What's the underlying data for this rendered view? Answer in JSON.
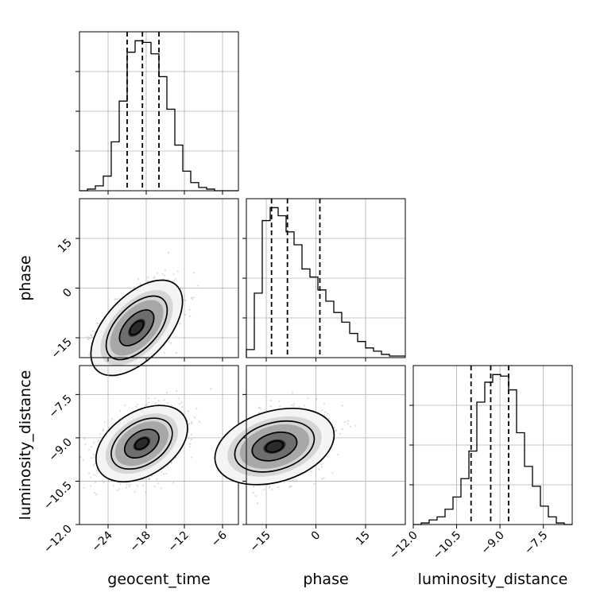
{
  "chart_data": {
    "type": "corner",
    "parameters": [
      "geocent_time",
      "phase",
      "luminosity_distance"
    ],
    "axes_labels": {
      "bottom_row": [
        "geocent_time",
        "phase",
        "luminosity_distance"
      ],
      "left_column": [
        "phase",
        "luminosity_distance"
      ]
    },
    "ranges": {
      "geocent_time": [
        -28.5,
        -3.5
      ],
      "phase": [
        -21,
        27
      ],
      "luminosity_distance": [
        -12.0,
        -6.5
      ]
    },
    "ticks": {
      "geocent_time": [
        -24,
        -18,
        -12,
        -6
      ],
      "phase": [
        -15,
        0,
        15
      ],
      "luminosity_distance": [
        -12.0,
        -10.5,
        -9.0,
        -7.5
      ]
    },
    "tick_labels": {
      "geocent_time": [
        "−24",
        "−18",
        "−12",
        "−6"
      ],
      "phase": [
        "−15",
        "0",
        "15"
      ],
      "luminosity_distance": [
        "−12.0",
        "−10.5",
        "−9.0",
        "−7.5"
      ]
    },
    "quantiles": {
      "geocent_time": [
        -21.0,
        -18.6,
        -16.0
      ],
      "phase": [
        -13.4,
        -8.6,
        1.2
      ],
      "luminosity_distance": [
        -10.0,
        -9.32,
        -8.7
      ]
    },
    "histograms": {
      "geocent_time": {
        "edges_start": -28.5,
        "bin_width": 1.25,
        "counts": [
          0,
          1,
          3,
          9,
          30,
          55,
          85,
          92,
          91,
          84,
          70,
          50,
          28,
          12,
          5,
          2,
          1,
          0,
          0,
          0
        ]
      },
      "phase": {
        "edges_start": -21,
        "bin_width": 2.4,
        "counts": [
          5,
          40,
          85,
          93,
          88,
          78,
          70,
          55,
          50,
          42,
          35,
          28,
          22,
          15,
          10,
          6,
          4,
          2,
          1,
          1
        ]
      },
      "luminosity_distance": {
        "edges_start": -12.0,
        "bin_width": 0.275,
        "counts": [
          0,
          1,
          3,
          5,
          10,
          18,
          30,
          48,
          80,
          93,
          98,
          97,
          88,
          60,
          38,
          25,
          12,
          5,
          1,
          0
        ]
      }
    },
    "density_2d": [
      {
        "x": "geocent_time",
        "y": "phase",
        "center": [
          -19.5,
          -12
        ],
        "sigma": [
          3.0,
          6.0
        ],
        "rho": 0.55
      },
      {
        "x": "geocent_time",
        "y": "luminosity_distance",
        "center": [
          -18.7,
          -9.2
        ],
        "sigma": [
          3.0,
          0.55
        ],
        "rho": 0.4
      },
      {
        "x": "phase",
        "y": "luminosity_distance",
        "center": [
          -12.5,
          -9.3
        ],
        "sigma": [
          7.5,
          0.55
        ],
        "rho": 0.3
      }
    ],
    "grid": true,
    "line_color": "#000000",
    "scatter_color": "#999999"
  }
}
